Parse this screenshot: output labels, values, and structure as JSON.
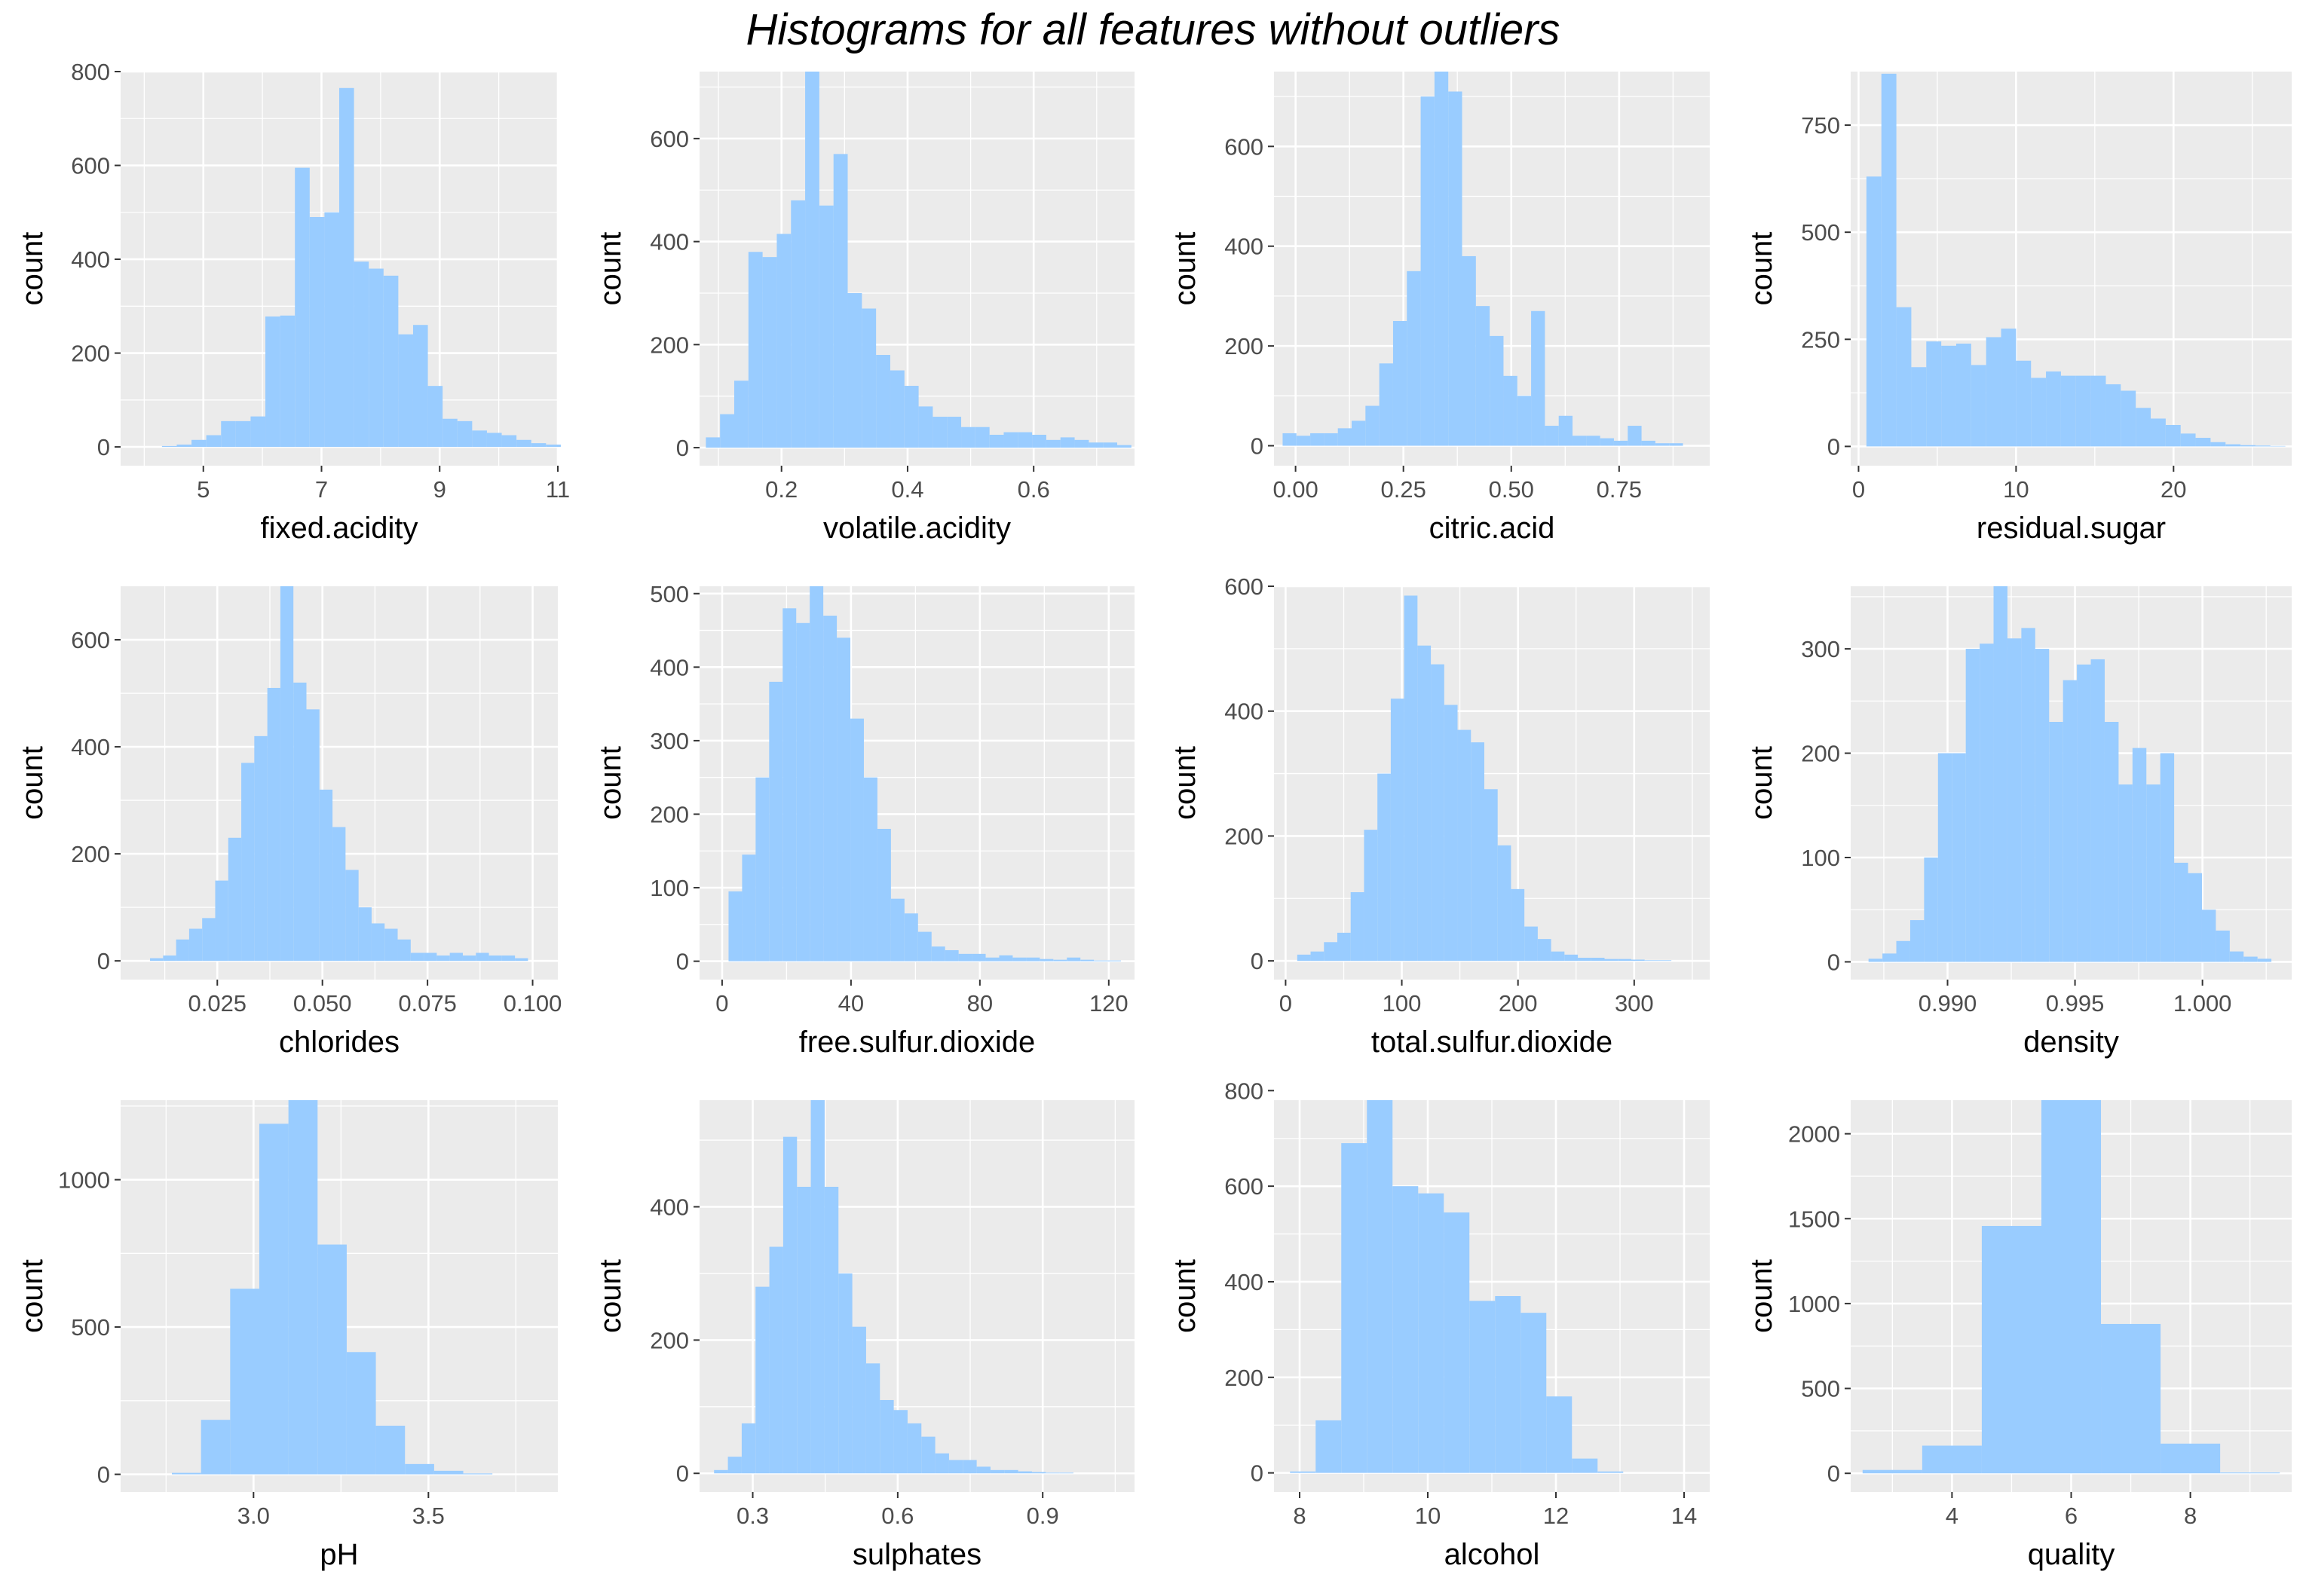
{
  "title": "Histograms for all features without outliers",
  "colors": {
    "bar": "#99CCFF",
    "panel": "#EBEBEB",
    "grid": "#FFFFFF",
    "tick_text": "#4D4D4D"
  },
  "chart_data": [
    {
      "type": "bar",
      "xlabel": "fixed.acidity",
      "ylabel": "count",
      "xlim": [
        3.6,
        11.0
      ],
      "ylim": [
        -40,
        800
      ],
      "xticks": [
        5,
        7,
        9,
        11
      ],
      "xtick_labels": [
        "5",
        "7",
        "9",
        "11"
      ],
      "yticks": [
        0,
        200,
        400,
        600,
        800
      ],
      "ytick_labels": [
        "0",
        "200",
        "400",
        "600",
        "800"
      ],
      "bin_start": 3.8,
      "bin_width": 0.25,
      "values": [
        0,
        0,
        2,
        5,
        15,
        25,
        55,
        55,
        65,
        278,
        280,
        595,
        490,
        500,
        765,
        395,
        380,
        365,
        240,
        260,
        130,
        60,
        55,
        35,
        30,
        25,
        15,
        8,
        5,
        0
      ]
    },
    {
      "type": "bar",
      "xlabel": "volatile.acidity",
      "ylabel": "count",
      "xlim": [
        0.07,
        0.76
      ],
      "ylim": [
        -35,
        730
      ],
      "xticks": [
        0.2,
        0.4,
        0.6
      ],
      "xtick_labels": [
        "0.2",
        "0.4",
        "0.6"
      ],
      "yticks": [
        0,
        200,
        400,
        600
      ],
      "ytick_labels": [
        "0",
        "200",
        "400",
        "600"
      ],
      "bin_start": 0.08,
      "bin_width": 0.0225,
      "values": [
        20,
        65,
        130,
        380,
        370,
        415,
        480,
        730,
        470,
        570,
        300,
        270,
        180,
        150,
        120,
        80,
        60,
        60,
        40,
        40,
        25,
        30,
        30,
        25,
        15,
        20,
        15,
        10,
        10,
        5
      ]
    },
    {
      "type": "bar",
      "xlabel": "citric.acid",
      "ylabel": "count",
      "xlim": [
        -0.05,
        0.96
      ],
      "ylim": [
        -40,
        750
      ],
      "xticks": [
        0.0,
        0.25,
        0.5,
        0.75
      ],
      "xtick_labels": [
        "0.00",
        "0.25",
        "0.50",
        "0.75"
      ],
      "yticks": [
        0,
        200,
        400,
        600
      ],
      "ytick_labels": [
        "0",
        "200",
        "400",
        "600"
      ],
      "bin_start": -0.03,
      "bin_width": 0.032,
      "values": [
        25,
        20,
        25,
        25,
        35,
        50,
        80,
        165,
        250,
        350,
        700,
        750,
        710,
        380,
        280,
        220,
        140,
        100,
        270,
        40,
        60,
        20,
        20,
        15,
        10,
        40,
        10,
        5,
        5,
        0
      ]
    },
    {
      "type": "bar",
      "xlabel": "residual.sugar",
      "ylabel": "count",
      "xlim": [
        -0.5,
        27.5
      ],
      "ylim": [
        -45,
        875
      ],
      "xticks": [
        0,
        10,
        20
      ],
      "xtick_labels": [
        "0",
        "10",
        "20"
      ],
      "yticks": [
        0,
        250,
        500,
        750
      ],
      "ytick_labels": [
        "0",
        "250",
        "500",
        "750"
      ],
      "bin_start": 0.5,
      "bin_width": 0.95,
      "values": [
        630,
        870,
        325,
        185,
        245,
        235,
        240,
        190,
        255,
        275,
        200,
        160,
        175,
        165,
        165,
        165,
        145,
        130,
        90,
        65,
        50,
        30,
        20,
        10,
        5,
        3,
        2,
        1,
        0,
        0
      ]
    },
    {
      "type": "bar",
      "xlabel": "chlorides",
      "ylabel": "count",
      "xlim": [
        0.002,
        0.106
      ],
      "ylim": [
        -35,
        700
      ],
      "xticks": [
        0.025,
        0.05,
        0.075,
        0.1
      ],
      "xtick_labels": [
        "0.025",
        "0.050",
        "0.075",
        "0.100"
      ],
      "bin_start": 0.009,
      "bin_width": 0.0031,
      "yticks": [
        0,
        200,
        400,
        600
      ],
      "ytick_labels": [
        "0",
        "200",
        "400",
        "600"
      ],
      "values": [
        5,
        10,
        40,
        60,
        80,
        150,
        230,
        370,
        420,
        510,
        700,
        520,
        470,
        320,
        250,
        170,
        100,
        70,
        60,
        40,
        15,
        15,
        10,
        15,
        10,
        15,
        10,
        10,
        5,
        0
      ]
    },
    {
      "type": "bar",
      "xlabel": "free.sulfur.dioxide",
      "ylabel": "count",
      "xlim": [
        -7,
        128
      ],
      "ylim": [
        -25,
        510
      ],
      "xticks": [
        0,
        40,
        80,
        120
      ],
      "xtick_labels": [
        "0",
        "40",
        "80",
        "120"
      ],
      "yticks": [
        0,
        100,
        200,
        300,
        400,
        500
      ],
      "ytick_labels": [
        "0",
        "100",
        "200",
        "300",
        "400",
        "500"
      ],
      "bin_start": 2,
      "bin_width": 4.2,
      "values": [
        95,
        145,
        250,
        380,
        480,
        460,
        510,
        470,
        440,
        330,
        250,
        180,
        85,
        65,
        40,
        20,
        15,
        10,
        10,
        5,
        8,
        5,
        5,
        3,
        2,
        5,
        2,
        1,
        1,
        0
      ]
    },
    {
      "type": "bar",
      "xlabel": "total.sulfur.dioxide",
      "ylabel": "count",
      "xlim": [
        -10,
        365
      ],
      "ylim": [
        -30,
        600
      ],
      "xticks": [
        0,
        100,
        200,
        300
      ],
      "xtick_labels": [
        "0",
        "100",
        "200",
        "300"
      ],
      "yticks": [
        0,
        200,
        400,
        600
      ],
      "ytick_labels": [
        "0",
        "200",
        "400",
        "600"
      ],
      "bin_start": 10,
      "bin_width": 11.5,
      "values": [
        10,
        15,
        30,
        45,
        110,
        210,
        300,
        420,
        585,
        505,
        475,
        410,
        370,
        350,
        275,
        185,
        115,
        55,
        35,
        15,
        10,
        5,
        5,
        3,
        3,
        2,
        1,
        1,
        0,
        0
      ]
    },
    {
      "type": "bar",
      "xlabel": "density",
      "ylabel": "count",
      "xlim": [
        0.9862,
        1.0035
      ],
      "ylim": [
        -17,
        360
      ],
      "xticks": [
        0.99,
        0.995,
        1.0
      ],
      "xtick_labels": [
        "0.990",
        "0.995",
        "1.000"
      ],
      "yticks": [
        0,
        100,
        200,
        300
      ],
      "ytick_labels": [
        "0",
        "100",
        "200",
        "300"
      ],
      "bin_start": 0.9869,
      "bin_width": 0.000545,
      "values": [
        3,
        8,
        20,
        40,
        100,
        200,
        200,
        300,
        305,
        360,
        310,
        320,
        300,
        230,
        270,
        285,
        290,
        230,
        170,
        205,
        170,
        200,
        95,
        85,
        50,
        30,
        10,
        5,
        3,
        0
      ]
    },
    {
      "type": "bar",
      "xlabel": "pH",
      "ylabel": "count",
      "xlim": [
        2.62,
        3.87
      ],
      "ylim": [
        -60,
        1270
      ],
      "xticks": [
        3.0,
        3.5
      ],
      "xtick_labels": [
        "3.0",
        "3.5"
      ],
      "yticks": [
        0,
        500,
        1000
      ],
      "ytick_labels": [
        "0",
        "500",
        "1000"
      ],
      "bin_start": 2.6833,
      "bin_width": 0.0833,
      "values": [
        0,
        5,
        185,
        630,
        1190,
        1270,
        780,
        415,
        165,
        35,
        12,
        3
      ]
    },
    {
      "type": "bar",
      "xlabel": "sulphates",
      "ylabel": "count",
      "xlim": [
        0.19,
        1.09
      ],
      "ylim": [
        -28,
        560
      ],
      "xticks": [
        0.3,
        0.6,
        0.9
      ],
      "xtick_labels": [
        "0.3",
        "0.6",
        "0.9"
      ],
      "yticks": [
        0,
        200,
        400
      ],
      "ytick_labels": [
        "0",
        "200",
        "400"
      ],
      "bin_start": 0.22,
      "bin_width": 0.0286,
      "values": [
        5,
        25,
        75,
        280,
        340,
        505,
        430,
        560,
        430,
        300,
        220,
        165,
        110,
        95,
        75,
        55,
        30,
        20,
        20,
        10,
        5,
        5,
        3,
        2,
        1,
        1,
        0,
        0,
        0,
        0
      ]
    },
    {
      "type": "bar",
      "xlabel": "alcohol",
      "ylabel": "count",
      "xlim": [
        7.6,
        14.4
      ],
      "ylim": [
        -40,
        780
      ],
      "xticks": [
        8,
        10,
        12,
        14
      ],
      "xtick_labels": [
        "8",
        "10",
        "12",
        "14"
      ],
      "yticks": [
        0,
        200,
        400,
        600,
        800
      ],
      "ytick_labels": [
        "0",
        "200",
        "400",
        "600",
        "800"
      ],
      "bin_start": 7.85,
      "bin_width": 0.4,
      "values": [
        3,
        110,
        690,
        780,
        600,
        585,
        545,
        360,
        370,
        335,
        160,
        30,
        3,
        0,
        0,
        0
      ]
    },
    {
      "type": "bar",
      "xlabel": "quality",
      "ylabel": "count",
      "xlim": [
        2.3,
        9.7
      ],
      "ylim": [
        -110,
        2198
      ],
      "xticks": [
        4,
        6,
        8
      ],
      "xtick_labels": [
        "4",
        "6",
        "8"
      ],
      "yticks": [
        0,
        500,
        1000,
        1500,
        2000
      ],
      "ytick_labels": [
        "0",
        "500",
        "1000",
        "1500",
        "2000"
      ],
      "bin_start": 2.5,
      "bin_width": 1,
      "values": [
        20,
        163,
        1457,
        2198,
        880,
        175,
        5
      ]
    }
  ]
}
